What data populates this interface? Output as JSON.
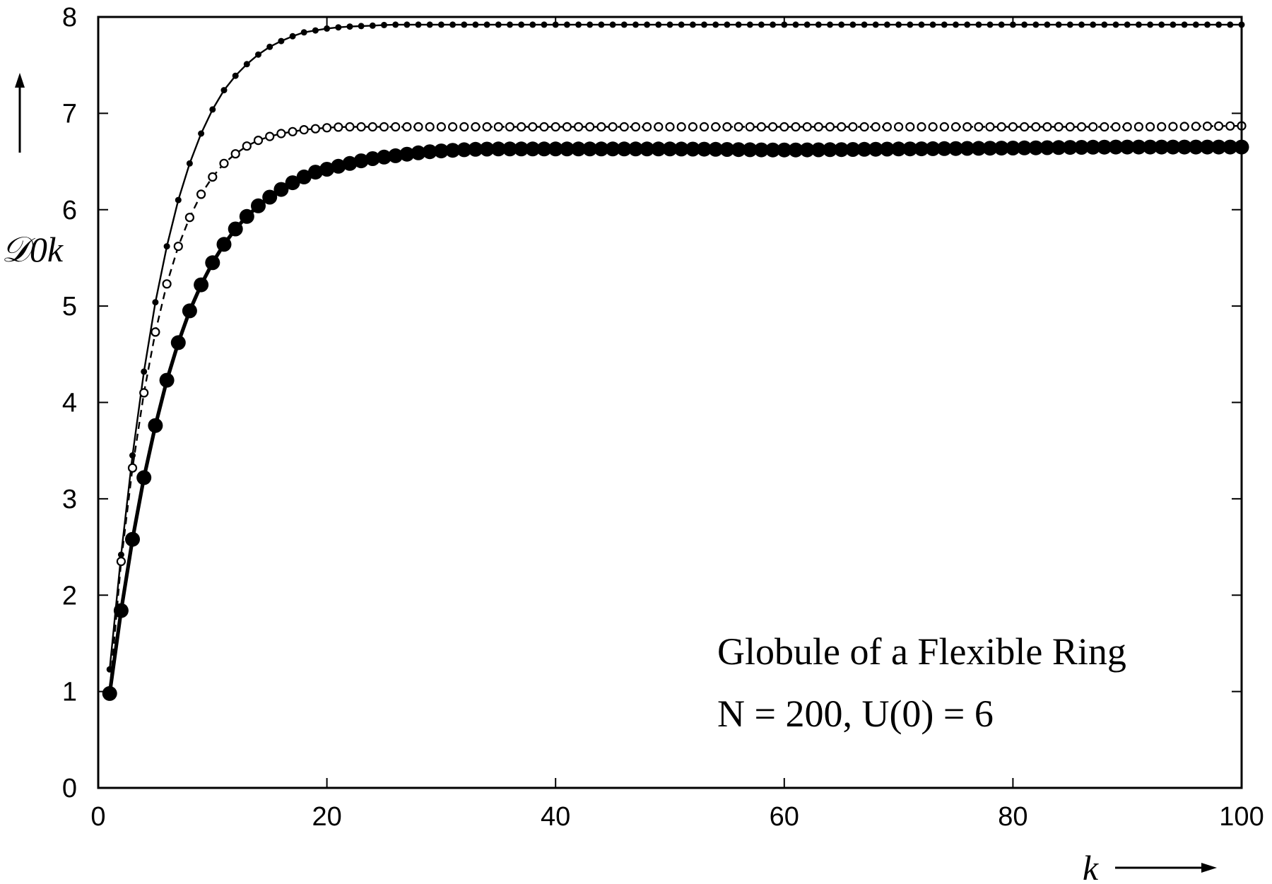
{
  "chart_data": {
    "type": "line",
    "title": "",
    "xlabel": "k",
    "ylabel": "𝒟0k",
    "xlim": [
      0,
      100
    ],
    "ylim": [
      0,
      8
    ],
    "x_ticks": [
      0,
      20,
      40,
      60,
      80,
      100
    ],
    "y_ticks": [
      0,
      1,
      2,
      3,
      4,
      5,
      6,
      7,
      8
    ],
    "grid": false,
    "legend": "none",
    "annotations": [
      "Globule of a Flexible Ring",
      "N = 200, U(0) = 6"
    ],
    "series": [
      {
        "style": "solid thin line, small filled dots",
        "x": [
          1,
          2,
          3,
          4,
          5,
          6,
          7,
          8,
          9,
          10,
          11,
          12,
          13,
          14,
          15,
          16,
          17,
          18,
          19,
          20,
          22,
          24,
          26,
          28,
          30,
          35,
          40,
          50,
          60,
          70,
          80,
          90,
          100
        ],
        "y": [
          1.23,
          2.42,
          3.45,
          4.32,
          5.04,
          5.62,
          6.1,
          6.48,
          6.79,
          7.04,
          7.24,
          7.39,
          7.51,
          7.61,
          7.69,
          7.75,
          7.8,
          7.84,
          7.86,
          7.88,
          7.9,
          7.91,
          7.92,
          7.92,
          7.92,
          7.92,
          7.92,
          7.92,
          7.92,
          7.92,
          7.92,
          7.92,
          7.92
        ]
      },
      {
        "style": "dashed line, small open circles",
        "x": [
          1,
          2,
          3,
          4,
          5,
          6,
          7,
          8,
          9,
          10,
          11,
          12,
          13,
          14,
          15,
          16,
          17,
          18,
          19,
          20,
          22,
          24,
          26,
          28,
          30,
          35,
          40,
          50,
          60,
          70,
          80,
          90,
          100
        ],
        "y": [
          1.0,
          2.35,
          3.32,
          4.1,
          4.73,
          5.23,
          5.62,
          5.92,
          6.16,
          6.34,
          6.48,
          6.58,
          6.66,
          6.72,
          6.76,
          6.79,
          6.81,
          6.83,
          6.84,
          6.85,
          6.86,
          6.86,
          6.86,
          6.86,
          6.86,
          6.86,
          6.86,
          6.86,
          6.86,
          6.86,
          6.86,
          6.86,
          6.87
        ]
      },
      {
        "style": "thick solid line, large filled dots",
        "x": [
          1,
          2,
          3,
          4,
          5,
          6,
          7,
          8,
          9,
          10,
          11,
          12,
          13,
          14,
          15,
          16,
          17,
          18,
          19,
          20,
          22,
          24,
          26,
          28,
          30,
          35,
          40,
          50,
          60,
          70,
          80,
          90,
          100
        ],
        "y": [
          0.98,
          1.84,
          2.58,
          3.22,
          3.76,
          4.23,
          4.62,
          4.95,
          5.22,
          5.45,
          5.64,
          5.8,
          5.93,
          6.04,
          6.13,
          6.21,
          6.28,
          6.34,
          6.39,
          6.42,
          6.48,
          6.53,
          6.56,
          6.59,
          6.61,
          6.63,
          6.63,
          6.63,
          6.62,
          6.63,
          6.64,
          6.65,
          6.65
        ]
      }
    ]
  }
}
